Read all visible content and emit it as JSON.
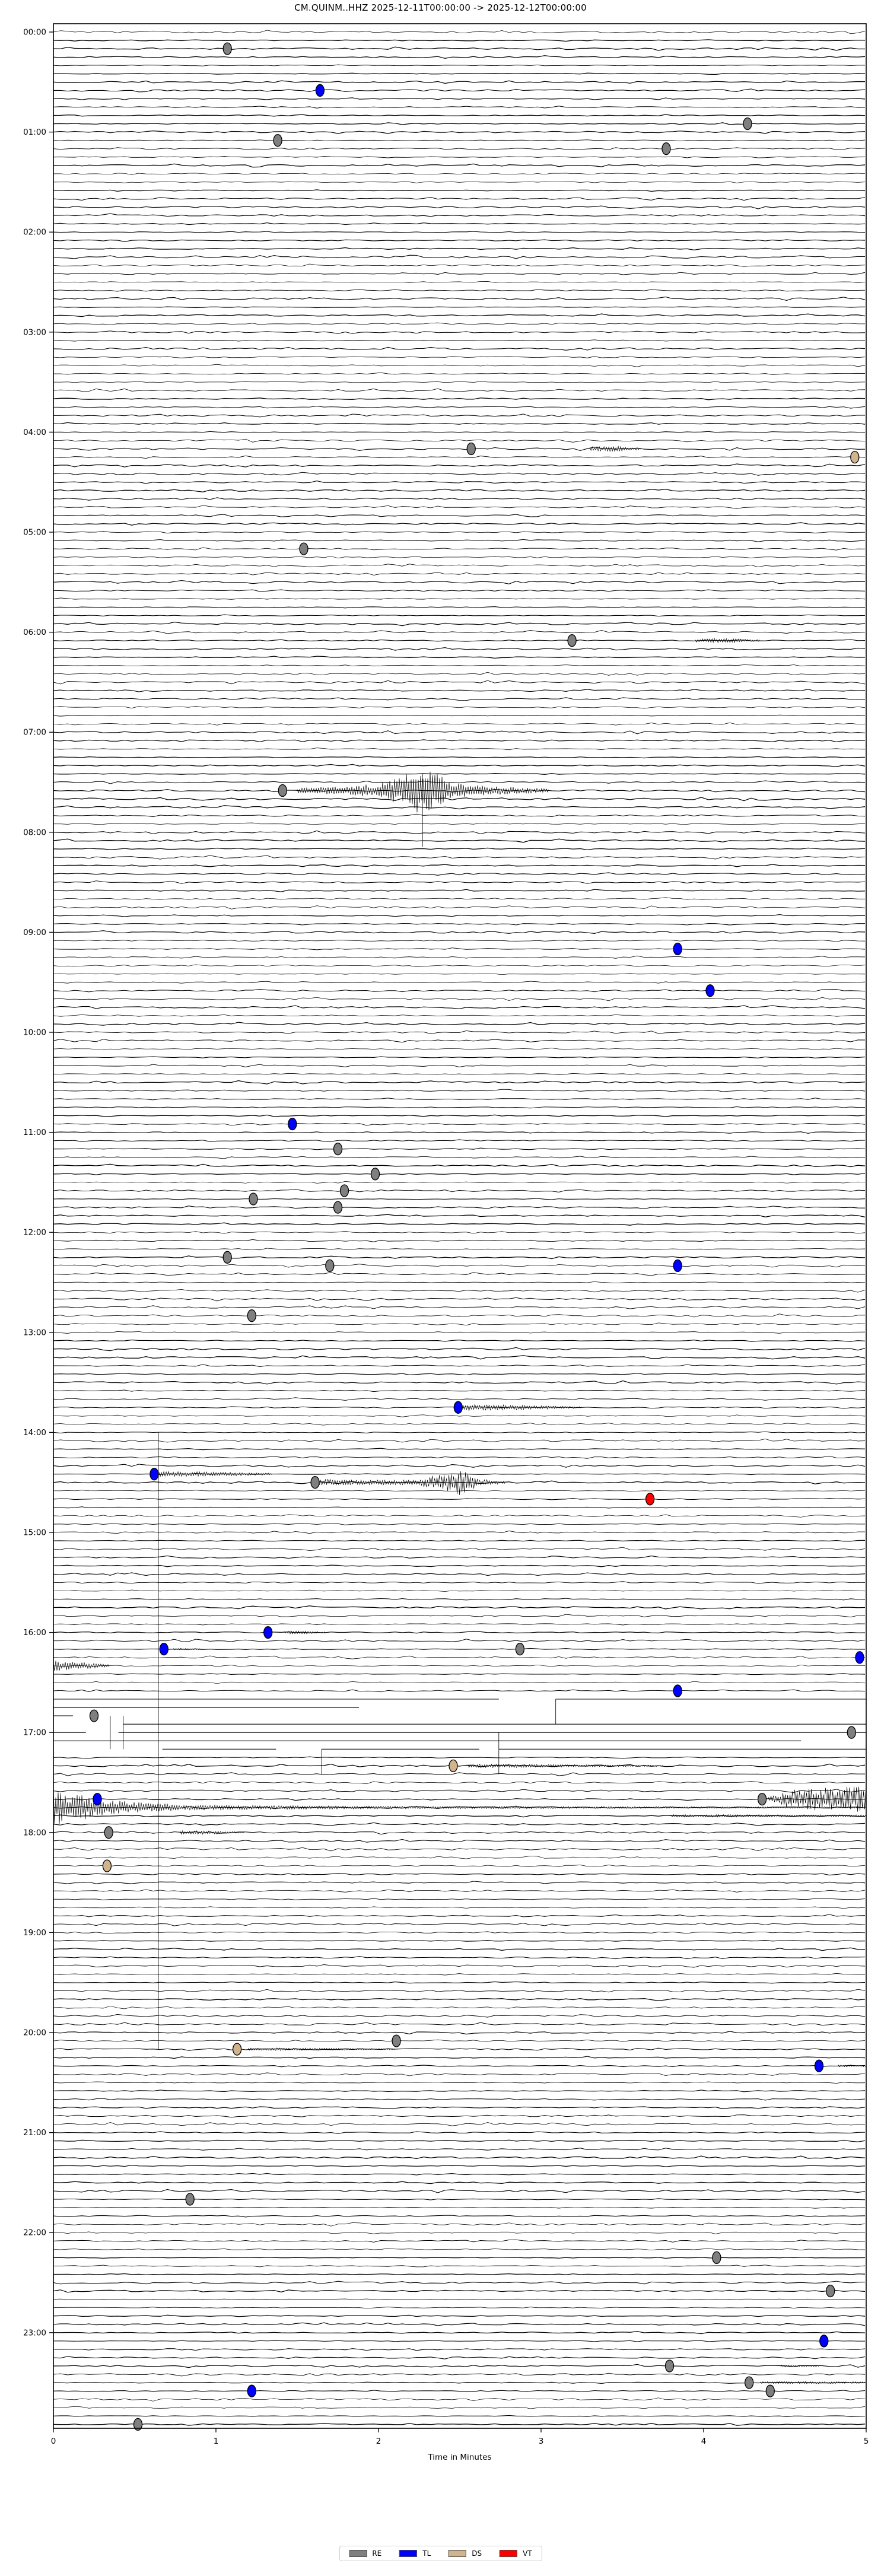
{
  "title": "CM.QUINM..HHZ  2025-12-11T00:00:00 -> 2025-12-12T00:00:00",
  "legend": [
    {
      "label": "RE",
      "color": "#7f7f7f"
    },
    {
      "label": "TL",
      "color": "#0000ff"
    },
    {
      "label": "DS",
      "color": "#d2b48c"
    },
    {
      "label": "VT",
      "color": "#ff0000"
    }
  ],
  "chart_data": {
    "type": "line",
    "subtype": "helicorder-dayplot",
    "title": "CM.QUINM..HHZ  2025-12-11T00:00:00 -> 2025-12-12T00:00:00",
    "time_start": "2025-12-11T00:00:00",
    "time_end": "2025-12-12T00:00:00",
    "x_axis": {
      "label": "Time in Minutes",
      "ticks": [
        0,
        1,
        2,
        3,
        4,
        5
      ],
      "range": [
        0,
        5
      ]
    },
    "y_axis": {
      "rows_per_hour": 12,
      "minutes_per_row": 5,
      "hour_labels": [
        "00:00",
        "01:00",
        "02:00",
        "03:00",
        "04:00",
        "05:00",
        "06:00",
        "07:00",
        "08:00",
        "09:00",
        "10:00",
        "11:00",
        "12:00",
        "13:00",
        "14:00",
        "15:00",
        "16:00",
        "17:00",
        "18:00",
        "19:00",
        "20:00",
        "21:00",
        "22:00",
        "23:00"
      ]
    },
    "class_colors": {
      "RE": "#7f7f7f",
      "TL": "#0000ff",
      "DS": "#d2b48c",
      "VT": "#ff0000"
    },
    "events": [
      {
        "time": "00:10",
        "minute": 1.07,
        "class": "RE"
      },
      {
        "time": "00:35",
        "minute": 1.64,
        "class": "TL"
      },
      {
        "time": "00:55",
        "minute": 4.27,
        "class": "RE"
      },
      {
        "time": "01:05",
        "minute": 1.38,
        "class": "RE"
      },
      {
        "time": "01:10",
        "minute": 3.77,
        "class": "RE"
      },
      {
        "time": "04:10",
        "minute": 2.57,
        "class": "RE"
      },
      {
        "time": "04:15",
        "minute": 4.93,
        "class": "DS"
      },
      {
        "time": "05:10",
        "minute": 1.54,
        "class": "RE"
      },
      {
        "time": "06:05",
        "minute": 3.19,
        "class": "RE"
      },
      {
        "time": "07:35",
        "minute": 1.41,
        "class": "RE"
      },
      {
        "time": "09:10",
        "minute": 3.84,
        "class": "TL"
      },
      {
        "time": "09:35",
        "minute": 4.04,
        "class": "TL"
      },
      {
        "time": "10:55",
        "minute": 1.47,
        "class": "TL"
      },
      {
        "time": "11:10",
        "minute": 1.75,
        "class": "RE"
      },
      {
        "time": "11:25",
        "minute": 1.98,
        "class": "RE"
      },
      {
        "time": "11:35",
        "minute": 1.79,
        "class": "RE"
      },
      {
        "time": "11:40",
        "minute": 1.23,
        "class": "RE"
      },
      {
        "time": "11:45",
        "minute": 1.75,
        "class": "RE"
      },
      {
        "time": "12:15",
        "minute": 1.07,
        "class": "RE"
      },
      {
        "time": "12:20",
        "minute": 1.7,
        "class": "RE"
      },
      {
        "time": "12:20",
        "minute": 3.84,
        "class": "TL"
      },
      {
        "time": "12:50",
        "minute": 1.22,
        "class": "RE"
      },
      {
        "time": "13:45",
        "minute": 2.49,
        "class": "TL"
      },
      {
        "time": "14:25",
        "minute": 0.62,
        "class": "TL"
      },
      {
        "time": "14:30",
        "minute": 1.61,
        "class": "RE"
      },
      {
        "time": "14:40",
        "minute": 3.67,
        "class": "VT"
      },
      {
        "time": "16:00",
        "minute": 1.32,
        "class": "TL"
      },
      {
        "time": "16:10",
        "minute": 0.68,
        "class": "TL"
      },
      {
        "time": "16:10",
        "minute": 2.87,
        "class": "RE"
      },
      {
        "time": "16:15",
        "minute": 4.96,
        "class": "TL"
      },
      {
        "time": "16:35",
        "minute": 3.84,
        "class": "TL"
      },
      {
        "time": "16:50",
        "minute": 0.25,
        "class": "RE"
      },
      {
        "time": "17:00",
        "minute": 4.91,
        "class": "RE"
      },
      {
        "time": "17:20",
        "minute": 2.46,
        "class": "DS"
      },
      {
        "time": "17:40",
        "minute": 0.27,
        "class": "TL"
      },
      {
        "time": "17:40",
        "minute": 4.36,
        "class": "RE"
      },
      {
        "time": "18:00",
        "minute": 0.34,
        "class": "RE"
      },
      {
        "time": "18:20",
        "minute": 0.33,
        "class": "DS"
      },
      {
        "time": "20:05",
        "minute": 2.11,
        "class": "RE"
      },
      {
        "time": "20:10",
        "minute": 1.13,
        "class": "DS"
      },
      {
        "time": "20:20",
        "minute": 4.71,
        "class": "TL"
      },
      {
        "time": "21:40",
        "minute": 0.84,
        "class": "RE"
      },
      {
        "time": "22:15",
        "minute": 4.08,
        "class": "RE"
      },
      {
        "time": "22:35",
        "minute": 4.78,
        "class": "RE"
      },
      {
        "time": "23:05",
        "minute": 4.74,
        "class": "TL"
      },
      {
        "time": "23:20",
        "minute": 3.79,
        "class": "RE"
      },
      {
        "time": "23:30",
        "minute": 4.28,
        "class": "RE"
      },
      {
        "time": "23:35",
        "minute": 1.22,
        "class": "TL"
      },
      {
        "time": "23:35",
        "minute": 4.41,
        "class": "RE"
      },
      {
        "time": "23:55",
        "minute": 0.52,
        "class": "RE"
      }
    ],
    "bursts": [
      {
        "time": "04:10",
        "profile": [
          [
            3.3,
            3.5
          ],
          [
            3.45,
            4.5
          ],
          [
            3.62,
            1.5
          ]
        ]
      },
      {
        "time": "06:05",
        "profile": [
          [
            3.95,
            3.0
          ],
          [
            4.15,
            3.8
          ],
          [
            4.35,
            1.2
          ]
        ]
      },
      {
        "time": "07:35",
        "profile": [
          [
            1.5,
            5
          ],
          [
            1.8,
            7
          ],
          [
            2.0,
            12
          ],
          [
            2.15,
            25
          ],
          [
            2.25,
            40
          ],
          [
            2.35,
            30
          ],
          [
            2.45,
            14
          ],
          [
            2.6,
            9
          ],
          [
            2.8,
            6
          ],
          [
            3.05,
            3
          ]
        ]
      },
      {
        "time": "13:45",
        "profile": [
          [
            2.52,
            7
          ],
          [
            2.7,
            5
          ],
          [
            3.0,
            3
          ],
          [
            3.25,
            1.5
          ]
        ]
      },
      {
        "time": "14:25",
        "profile": [
          [
            0.65,
            5
          ],
          [
            0.9,
            4
          ],
          [
            1.35,
            1.5
          ]
        ]
      },
      {
        "time": "14:30",
        "profile": [
          [
            1.63,
            6
          ],
          [
            1.9,
            4
          ],
          [
            2.2,
            4
          ],
          [
            2.42,
            16
          ],
          [
            2.5,
            22
          ],
          [
            2.62,
            6
          ],
          [
            2.78,
            2
          ]
        ]
      },
      {
        "time": "16:00",
        "profile": [
          [
            1.42,
            2.5
          ],
          [
            1.55,
            2.5
          ],
          [
            1.68,
            1.0
          ]
        ]
      },
      {
        "time": "16:10",
        "profile": [
          [
            0.74,
            2.0
          ],
          [
            0.92,
            1.0
          ]
        ]
      },
      {
        "time": "16:20",
        "profile": [
          [
            0.0,
            9
          ],
          [
            0.15,
            6
          ],
          [
            0.35,
            2
          ]
        ]
      },
      {
        "time": "17:20",
        "profile": [
          [
            2.55,
            3.5
          ],
          [
            3.0,
            2.5
          ],
          [
            3.75,
            1.2
          ]
        ]
      },
      {
        "time": "17:40",
        "profile": [
          [
            4.4,
            4
          ],
          [
            4.55,
            16
          ],
          [
            4.75,
            20
          ],
          [
            5.0,
            22
          ]
        ]
      },
      {
        "time": "17:45",
        "profile": [
          [
            0.0,
            30
          ],
          [
            0.08,
            27
          ],
          [
            0.2,
            20
          ],
          [
            0.35,
            13
          ],
          [
            0.55,
            8
          ],
          [
            0.8,
            5
          ],
          [
            1.2,
            3.5
          ],
          [
            2.0,
            2.5
          ],
          [
            3.5,
            1.8
          ],
          [
            5.0,
            1.2
          ]
        ]
      },
      {
        "time": "17:50",
        "profile": [
          [
            3.8,
            2.2
          ],
          [
            4.4,
            2.2
          ],
          [
            5.0,
            1.8
          ]
        ]
      },
      {
        "time": "18:00",
        "profile": [
          [
            0.78,
            3.5
          ],
          [
            0.95,
            3.0
          ],
          [
            1.18,
            1.0
          ]
        ]
      },
      {
        "time": "20:10",
        "profile": [
          [
            1.2,
            2.4
          ],
          [
            1.6,
            2.0
          ],
          [
            2.1,
            1.0
          ]
        ]
      },
      {
        "time": "20:20",
        "profile": [
          [
            4.83,
            2.0
          ],
          [
            5.0,
            1.5
          ]
        ]
      },
      {
        "time": "23:20",
        "profile": [
          [
            4.48,
            2.0
          ],
          [
            4.72,
            1.0
          ]
        ]
      },
      {
        "time": "23:30",
        "profile": [
          [
            4.35,
            2.2
          ],
          [
            4.7,
            2.0
          ],
          [
            5.0,
            1.5
          ]
        ]
      }
    ],
    "artifacts": {
      "spikes": [
        {
          "time": "07:35",
          "minute": 2.27,
          "up": 28,
          "down": 95
        }
      ],
      "vlines": [
        {
          "minute": 0.646,
          "from": "14:00",
          "to": "20:10"
        },
        {
          "minute": 3.09,
          "from": "16:40",
          "to": "16:55"
        },
        {
          "minute": 2.74,
          "from": "17:00",
          "to": "17:25"
        },
        {
          "minute": 1.65,
          "from": "17:10",
          "to": "17:25"
        },
        {
          "minute": 0.35,
          "from": "16:50",
          "to": "17:10"
        },
        {
          "minute": 0.43,
          "from": "16:50",
          "to": "17:10"
        }
      ],
      "step_rows": [
        {
          "time": "16:40",
          "segments": [
            [
              0,
              2.74
            ],
            [
              3.09,
              5
            ]
          ]
        },
        {
          "time": "16:45",
          "segments": [
            [
              0,
              1.88
            ]
          ]
        },
        {
          "time": "16:50",
          "segments": [
            [
              0,
              0.12
            ]
          ]
        },
        {
          "time": "16:55",
          "segments": [
            [
              0.43,
              5
            ]
          ]
        },
        {
          "time": "17:00",
          "segments": [
            [
              0,
              0.2
            ],
            [
              0.4,
              5
            ]
          ]
        },
        {
          "time": "17:05",
          "segments": [
            [
              0,
              4.6
            ]
          ]
        },
        {
          "time": "17:10",
          "segments": [
            [
              0.67,
              1.37
            ],
            [
              1.65,
              2.62
            ],
            [
              2.74,
              5
            ]
          ]
        }
      ]
    }
  }
}
